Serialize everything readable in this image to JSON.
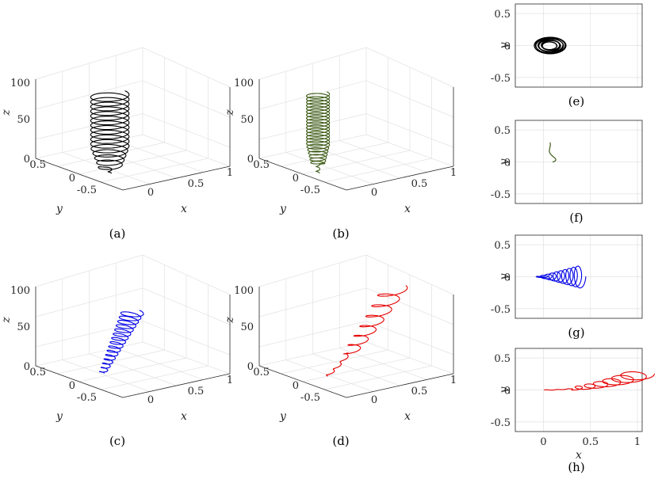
{
  "chart_data": [
    {
      "panel": "(a)",
      "type": "line",
      "projection": "3d",
      "color": "#000000",
      "zlabel": "z",
      "ylabel": "y",
      "xlabel": "x",
      "z_ticks": [
        "0",
        "50",
        "100"
      ],
      "y_ticks": [
        "0.5",
        "0",
        "-0.5"
      ],
      "x_ticks": [
        "0",
        "0.5",
        "1"
      ],
      "zlim": [
        0,
        130
      ],
      "shape": {
        "kind": "helix",
        "x_center": 0.1,
        "y_center": 0.0,
        "radius": 0.2,
        "z_start": 0,
        "z_end": 120,
        "turns": 17,
        "tail_z": -10
      }
    },
    {
      "panel": "(b)",
      "type": "line",
      "projection": "3d",
      "color": "#3c5a14",
      "zlabel": "z",
      "ylabel": "y",
      "xlabel": "x",
      "z_ticks": [
        "0",
        "50",
        "100"
      ],
      "y_ticks": [
        "0.5",
        "0",
        "-0.5"
      ],
      "x_ticks": [
        "0",
        "0.5",
        "1"
      ],
      "zlim": [
        0,
        130
      ],
      "shape": {
        "kind": "helix",
        "x_center": 0.05,
        "y_center": 0.2,
        "radius": 0.12,
        "z_start": 0,
        "z_end": 115,
        "turns": 24,
        "tail_z": -15
      }
    },
    {
      "panel": "(c)",
      "type": "line",
      "projection": "3d",
      "color": "#0000e6",
      "zlabel": "z",
      "ylabel": "y",
      "xlabel": "x",
      "z_ticks": [
        "0",
        "50",
        "100"
      ],
      "y_ticks": [
        "0.5",
        "0",
        "-0.5"
      ],
      "x_ticks": [
        "0",
        "0.5",
        "1"
      ],
      "zlim": [
        0,
        130
      ],
      "shape": {
        "kind": "fan",
        "x_start": 0.0,
        "x_end": 0.4,
        "y_center": 0.0,
        "radius": 0.15,
        "z_start": 5,
        "z_end": 95,
        "turns": 15
      }
    },
    {
      "panel": "(d)",
      "type": "line",
      "projection": "3d",
      "color": "#e60000",
      "zlabel": "z",
      "ylabel": "y",
      "xlabel": "x",
      "z_ticks": [
        "0",
        "50",
        "100"
      ],
      "y_ticks": [
        "0.5",
        "0",
        "-0.5"
      ],
      "x_ticks": [
        "0",
        "0.5",
        "1"
      ],
      "zlim": [
        0,
        130
      ],
      "shape": {
        "kind": "drift",
        "x_start": 0.0,
        "x_end": 0.9,
        "y_center": 0.0,
        "radius": 0.15,
        "z_start": 0,
        "z_end": 120,
        "turns": 10
      }
    },
    {
      "panel": "(e)",
      "type": "line",
      "projection": "xy",
      "color": "#000000",
      "ylabel": "y",
      "xlabel": "",
      "y_ticks": [
        "0.5",
        "0",
        "-0.5"
      ],
      "x_ticks": [],
      "xlim": [
        -0.3,
        1.05
      ],
      "ylim": [
        -0.65,
        0.65
      ],
      "shape": {
        "kind": "loops",
        "x_center": 0.07,
        "y_center": 0.0,
        "rx": 0.17,
        "ry": 0.13,
        "turns": 18
      }
    },
    {
      "panel": "(f)",
      "type": "line",
      "projection": "xy",
      "color": "#3c5a14",
      "ylabel": "y",
      "xlabel": "",
      "y_ticks": [
        "0.5",
        "0",
        "-0.5"
      ],
      "x_ticks": [],
      "xlim": [
        -0.3,
        1.05
      ],
      "ylim": [
        -0.65,
        0.65
      ],
      "shape": {
        "kind": "band",
        "x_from": 0.05,
        "x_to": 0.12,
        "y_from": 0.3,
        "y_to": 0.0,
        "turns": 14
      }
    },
    {
      "panel": "(g)",
      "type": "line",
      "projection": "xy",
      "color": "#0000e6",
      "ylabel": "y",
      "xlabel": "",
      "y_ticks": [
        "0.5",
        "0",
        "-0.5"
      ],
      "x_ticks": [],
      "xlim": [
        -0.3,
        1.05
      ],
      "ylim": [
        -0.65,
        0.65
      ],
      "shape": {
        "kind": "fan2d",
        "x_start": -0.05,
        "x_end": 0.4,
        "y_center": 0.0,
        "amp": 0.2,
        "turns": 10
      }
    },
    {
      "panel": "(h)",
      "type": "line",
      "projection": "xy",
      "color": "#e60000",
      "ylabel": "y",
      "xlabel": "x",
      "y_ticks": [
        "0.5",
        "0",
        "-0.5"
      ],
      "x_ticks": [
        "0",
        "0.5",
        "1"
      ],
      "xlim": [
        -0.3,
        1.05
      ],
      "ylim": [
        -0.65,
        0.65
      ],
      "shape": {
        "kind": "drift2d",
        "x_start": 0.0,
        "x_end": 1.0,
        "y_start": 0.0,
        "y_end": 0.25,
        "turns": 9
      }
    }
  ]
}
